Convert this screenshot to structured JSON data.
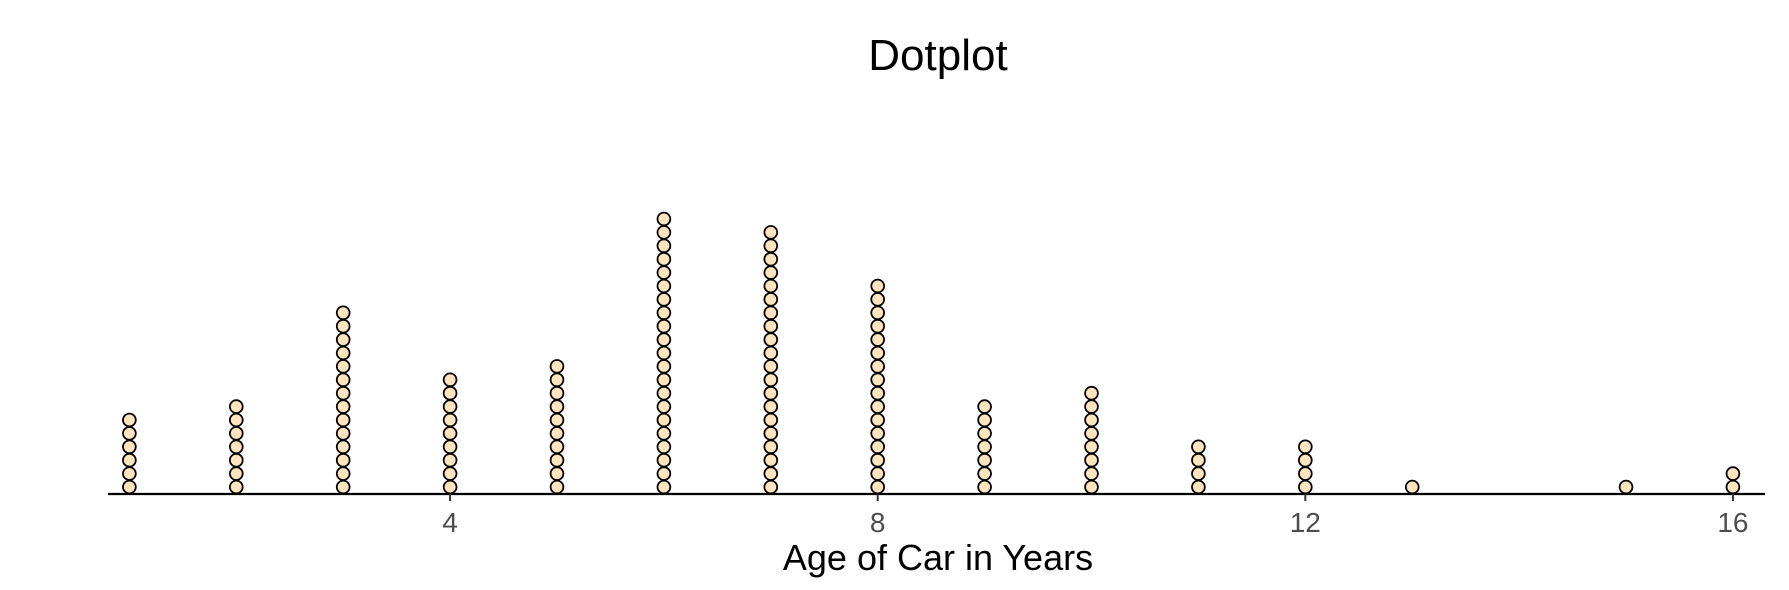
{
  "chart_data": {
    "type": "dotplot",
    "title": "Dotplot",
    "xlabel": "Age of Car in Years",
    "ylabel": "",
    "xlim": [
      0.8,
      16.3
    ],
    "x_ticks": [
      4,
      8,
      12,
      16
    ],
    "x_tick_labels": [
      "4",
      "8",
      "12",
      "16"
    ],
    "grid": false,
    "legend": "none",
    "dot_fill": "#FFE4BE",
    "dot_stroke": "#000000",
    "points": [
      {
        "x": 1,
        "count": 6
      },
      {
        "x": 2,
        "count": 7
      },
      {
        "x": 3,
        "count": 14
      },
      {
        "x": 4,
        "count": 9
      },
      {
        "x": 5,
        "count": 10
      },
      {
        "x": 6,
        "count": 21
      },
      {
        "x": 7,
        "count": 20
      },
      {
        "x": 8,
        "count": 16
      },
      {
        "x": 9,
        "count": 7
      },
      {
        "x": 10,
        "count": 8
      },
      {
        "x": 11,
        "count": 4
      },
      {
        "x": 12,
        "count": 4
      },
      {
        "x": 13,
        "count": 1
      },
      {
        "x": 15,
        "count": 1
      },
      {
        "x": 16,
        "count": 2
      }
    ]
  }
}
